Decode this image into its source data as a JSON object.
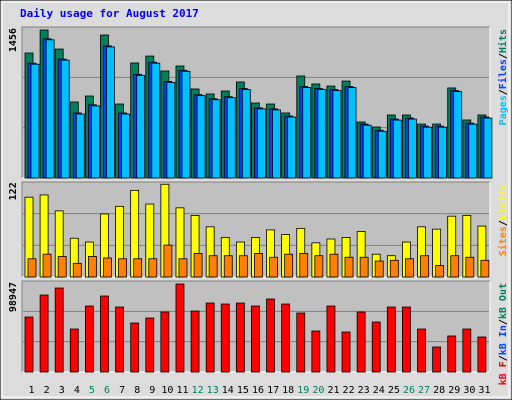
{
  "chart_data": [
    {
      "type": "bar",
      "title": "Daily usage for August 2017",
      "title_color": "#0000ff",
      "ylim": [
        0,
        1486
      ],
      "yticks": [
        1456
      ],
      "legend_separator": "/",
      "series": [
        {
          "name": "Hits",
          "color": "#00805c",
          "values": [
            1230,
            1456,
            1269,
            748,
            807,
            1407,
            728,
            1132,
            1200,
            1053,
            1102,
            876,
            827,
            856,
            945,
            738,
            728,
            640,
            1004,
            925,
            905,
            954,
            551,
            502,
            620,
            620,
            531,
            531,
            886,
            571,
            620
          ]
        },
        {
          "name": "Files",
          "color": "#0040ff",
          "values": [
            1130,
            1370,
            1170,
            640,
            720,
            1300,
            640,
            1020,
            1140,
            950,
            1060,
            820,
            780,
            800,
            880,
            690,
            680,
            610,
            900,
            880,
            870,
            900,
            530,
            470,
            580,
            590,
            510,
            510,
            860,
            540,
            600
          ]
        },
        {
          "name": "Pages",
          "color": "#00c0ff",
          "values": [
            1120,
            1360,
            1160,
            630,
            710,
            1290,
            630,
            1010,
            1130,
            940,
            1050,
            810,
            770,
            790,
            870,
            680,
            670,
            600,
            890,
            870,
            860,
            890,
            520,
            460,
            570,
            580,
            500,
            500,
            850,
            530,
            590
          ]
        }
      ]
    },
    {
      "type": "bar",
      "ylim": [
        0,
        125
      ],
      "yticks": [
        122
      ],
      "series": [
        {
          "name": "Visits",
          "color": "#ffff00",
          "values": [
            105,
            108,
            87,
            51,
            46,
            83,
            93,
            114,
            96,
            122,
            91,
            81,
            66,
            52,
            46,
            52,
            62,
            56,
            64,
            45,
            50,
            52,
            60,
            30,
            28,
            46,
            66,
            63,
            80,
            81,
            67
          ]
        },
        {
          "name": "Sites",
          "color": "#ff8000",
          "values": [
            24,
            30,
            27,
            18,
            27,
            25,
            24,
            24,
            24,
            42,
            24,
            31,
            28,
            28,
            28,
            31,
            26,
            30,
            31,
            28,
            30,
            26,
            26,
            21,
            22,
            24,
            28,
            15,
            28,
            26,
            22
          ]
        }
      ]
    },
    {
      "type": "bar",
      "ylim": [
        0,
        102320
      ],
      "yticks": [
        98947
      ],
      "series": [
        {
          "name": "kB F",
          "color": "#ff0000",
          "values": [
            61820,
            86548,
            94416,
            48332,
            74184,
            85424,
            73060,
            55076,
            60696,
            67440,
            98947,
            68564,
            77556,
            76432,
            77556,
            74184,
            82052,
            76432,
            66316,
            46084,
            74184,
            44960,
            67440,
            56200,
            73060,
            73060,
            48332,
            28100,
            40464,
            48332,
            39340
          ]
        }
      ],
      "legend_extra": [
        {
          "name": "kB In",
          "color": "#0040ff"
        },
        {
          "name": "kB Out",
          "color": "#00805c"
        }
      ],
      "categories": [
        "1",
        "2",
        "3",
        "4",
        "5",
        "6",
        "7",
        "8",
        "9",
        "10",
        "11",
        "12",
        "13",
        "14",
        "15",
        "16",
        "17",
        "18",
        "19",
        "20",
        "21",
        "22",
        "23",
        "24",
        "25",
        "26",
        "27",
        "28",
        "29",
        "30",
        "31"
      ],
      "category_colors": [
        "#000000",
        "#000000",
        "#000000",
        "#000000",
        "#00805c",
        "#00805c",
        "#000000",
        "#000000",
        "#000000",
        "#000000",
        "#000000",
        "#00805c",
        "#00805c",
        "#000000",
        "#000000",
        "#000000",
        "#000000",
        "#000000",
        "#00805c",
        "#00805c",
        "#000000",
        "#000000",
        "#000000",
        "#000000",
        "#000000",
        "#00805c",
        "#00805c",
        "#000000",
        "#000000",
        "#000000",
        "#000000"
      ]
    }
  ]
}
